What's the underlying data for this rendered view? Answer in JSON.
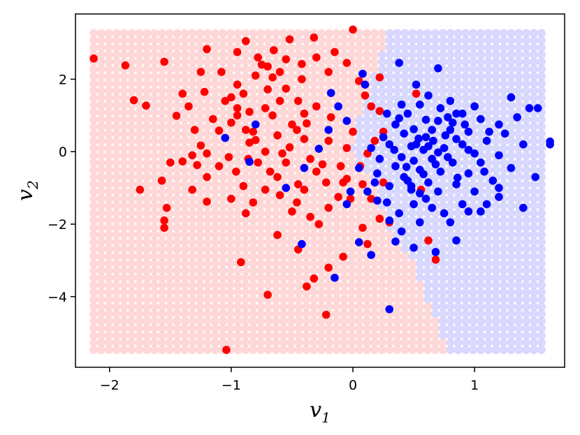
{
  "chart_data": {
    "type": "scatter",
    "title": "",
    "xlabel": {
      "base": "v",
      "sub": "1"
    },
    "ylabel": {
      "base": "v",
      "sub": "2"
    },
    "xlim": [
      -2.28,
      1.74
    ],
    "ylim": [
      -5.95,
      3.8
    ],
    "x_ticks": [
      {
        "value": -2,
        "label": "−2"
      },
      {
        "value": -1,
        "label": "−1"
      },
      {
        "value": 0,
        "label": "0"
      },
      {
        "value": 1,
        "label": "1"
      }
    ],
    "y_ticks": [
      {
        "value": 2,
        "label": "2"
      },
      {
        "value": 0,
        "label": "0"
      },
      {
        "value": -2,
        "label": "−2"
      },
      {
        "value": -4,
        "label": "−4"
      }
    ],
    "grid": false,
    "legend": "none",
    "background_grid": {
      "x_range": [
        -2.13,
        1.55
      ],
      "y_range": [
        -5.47,
        3.27
      ],
      "nx": 60,
      "ny": 45,
      "boundary": [
        [
          3.27,
          0.3
        ],
        [
          2.6,
          0.22
        ],
        [
          1.6,
          0.12
        ],
        [
          0.8,
          0.02
        ],
        [
          0.0,
          -0.02
        ],
        [
          -1.0,
          0.2
        ],
        [
          -2.0,
          0.28
        ],
        [
          -3.0,
          0.48
        ],
        [
          -4.0,
          0.6
        ],
        [
          -5.47,
          0.78
        ]
      ],
      "left_color": "#ffcccc",
      "right_color": "#ccccff",
      "opacity": 0.75
    },
    "series": [
      {
        "name": "",
        "color": "#ff0000",
        "points": [
          [
            -2.13,
            2.57
          ],
          [
            -1.87,
            2.38
          ],
          [
            -1.55,
            2.48
          ],
          [
            -1.8,
            1.42
          ],
          [
            -1.7,
            1.27
          ],
          [
            -1.35,
            1.25
          ],
          [
            -1.45,
            0.99
          ],
          [
            -1.5,
            -0.3
          ],
          [
            -1.57,
            -0.8
          ],
          [
            -1.75,
            -1.05
          ],
          [
            -1.53,
            -1.55
          ],
          [
            -1.55,
            -1.9
          ],
          [
            -1.55,
            -2.1
          ],
          [
            -1.4,
            -0.27
          ],
          [
            -1.32,
            -0.1
          ],
          [
            -1.28,
            -0.37
          ],
          [
            -1.2,
            -0.7
          ],
          [
            -1.32,
            -1.05
          ],
          [
            -1.2,
            -1.38
          ],
          [
            -1.25,
            0.17
          ],
          [
            -1.1,
            0.58
          ],
          [
            -1.0,
            0.8
          ],
          [
            -0.95,
            1.0
          ],
          [
            -1.05,
            1.4
          ],
          [
            -0.9,
            1.6
          ],
          [
            -0.95,
            1.85
          ],
          [
            -0.8,
            2.1
          ],
          [
            -0.75,
            2.4
          ],
          [
            -0.66,
            2.05
          ],
          [
            -0.55,
            1.74
          ],
          [
            -0.6,
            1.4
          ],
          [
            -0.72,
            1.2
          ],
          [
            -0.85,
            1.1
          ],
          [
            -0.88,
            0.6
          ],
          [
            -0.8,
            0.32
          ],
          [
            -0.72,
            0.0
          ],
          [
            -0.62,
            0.45
          ],
          [
            -0.5,
            0.75
          ],
          [
            -0.4,
            1.05
          ],
          [
            -0.52,
            0.12
          ],
          [
            -0.55,
            -0.3
          ],
          [
            -0.62,
            -0.7
          ],
          [
            -0.72,
            -1.05
          ],
          [
            -0.82,
            -1.4
          ],
          [
            -0.9,
            -0.95
          ],
          [
            -0.96,
            -0.55
          ],
          [
            -1.02,
            -0.15
          ],
          [
            -1.1,
            -0.4
          ],
          [
            -1.0,
            -1.3
          ],
          [
            -0.88,
            -1.7
          ],
          [
            -0.95,
            2.75
          ],
          [
            -0.88,
            3.05
          ],
          [
            -0.78,
            2.6
          ],
          [
            -0.65,
            2.8
          ],
          [
            -0.55,
            2.55
          ],
          [
            -0.52,
            3.1
          ],
          [
            -0.6,
            2.2
          ],
          [
            -0.7,
            1.72
          ],
          [
            -0.45,
            1.4
          ],
          [
            -0.38,
            0.78
          ],
          [
            -0.4,
            0.35
          ],
          [
            -0.35,
            -0.2
          ],
          [
            -0.3,
            -0.55
          ],
          [
            -0.22,
            -0.85
          ],
          [
            -0.4,
            -1.05
          ],
          [
            -0.46,
            -1.4
          ],
          [
            -0.35,
            -1.8
          ],
          [
            -0.28,
            -2.0
          ],
          [
            -0.2,
            -1.55
          ],
          [
            -0.12,
            -1.25
          ],
          [
            -0.08,
            -0.85
          ],
          [
            -0.1,
            -0.4
          ],
          [
            -0.05,
            0.1
          ],
          [
            0.0,
            0.55
          ],
          [
            -0.18,
            0.95
          ],
          [
            -0.3,
            1.25
          ],
          [
            -0.42,
            2.0
          ],
          [
            -0.3,
            2.6
          ],
          [
            -0.2,
            2.2
          ],
          [
            -0.32,
            3.15
          ],
          [
            -0.15,
            2.75
          ],
          [
            -0.05,
            2.45
          ],
          [
            0.0,
            3.37
          ],
          [
            0.05,
            1.95
          ],
          [
            0.1,
            1.55
          ],
          [
            0.15,
            1.25
          ],
          [
            0.22,
            1.12
          ],
          [
            0.25,
            0.55
          ],
          [
            0.18,
            0.3
          ],
          [
            0.12,
            -0.05
          ],
          [
            0.06,
            -0.4
          ],
          [
            -0.05,
            -0.75
          ],
          [
            -0.02,
            -1.3
          ],
          [
            0.08,
            -2.1
          ],
          [
            0.12,
            -2.55
          ],
          [
            -0.08,
            -2.9
          ],
          [
            -0.2,
            -3.2
          ],
          [
            -0.32,
            -3.5
          ],
          [
            -0.38,
            -3.72
          ],
          [
            -0.22,
            -4.5
          ],
          [
            -0.45,
            -2.7
          ],
          [
            -0.62,
            -2.3
          ],
          [
            -0.7,
            -3.95
          ],
          [
            -0.92,
            -3.05
          ],
          [
            -1.04,
            -5.47
          ],
          [
            -1.2,
            -0.05
          ],
          [
            -1.3,
            0.6
          ],
          [
            -1.22,
            1.65
          ],
          [
            -1.25,
            2.2
          ],
          [
            -1.4,
            1.6
          ],
          [
            -1.2,
            2.83
          ],
          [
            -1.0,
            1.5
          ],
          [
            -0.85,
            0.25
          ],
          [
            -0.78,
            -0.3
          ],
          [
            -0.68,
            -0.55
          ],
          [
            -0.6,
            -1.2
          ],
          [
            -0.5,
            -1.65
          ],
          [
            -0.45,
            -0.9
          ],
          [
            -0.25,
            -0.35
          ],
          [
            -0.2,
            0.3
          ],
          [
            0.08,
            -0.9
          ],
          [
            0.15,
            -1.3
          ],
          [
            0.22,
            -1.85
          ],
          [
            0.25,
            -0.85
          ],
          [
            0.3,
            -1.95
          ],
          [
            0.62,
            -2.45
          ],
          [
            0.68,
            -2.98
          ],
          [
            0.56,
            -1.05
          ],
          [
            0.52,
            1.6
          ],
          [
            0.22,
            2.05
          ],
          [
            -0.95,
            1.2
          ],
          [
            -0.82,
            0.55
          ],
          [
            -0.66,
            1.0
          ],
          [
            -0.46,
            0.6
          ],
          [
            -0.58,
            -0.05
          ],
          [
            -0.86,
            -0.2
          ],
          [
            -1.15,
            0.9
          ],
          [
            -1.08,
            2.2
          ],
          [
            -0.7,
            2.35
          ],
          [
            -0.42,
            2.42
          ]
        ]
      },
      {
        "name": "",
        "color": "#0000ff",
        "points": [
          [
            0.38,
            2.45
          ],
          [
            0.7,
            2.3
          ],
          [
            0.52,
            1.85
          ],
          [
            0.62,
            1.55
          ],
          [
            0.8,
            1.4
          ],
          [
            0.9,
            1.05
          ],
          [
            1.05,
            0.9
          ],
          [
            1.2,
            0.75
          ],
          [
            1.35,
            0.95
          ],
          [
            1.45,
            1.2
          ],
          [
            1.4,
            0.2
          ],
          [
            1.2,
            -0.1
          ],
          [
            1.05,
            -0.3
          ],
          [
            0.95,
            -0.6
          ],
          [
            0.85,
            -0.9
          ],
          [
            0.7,
            -1.1
          ],
          [
            0.6,
            -1.3
          ],
          [
            0.5,
            -1.45
          ],
          [
            0.38,
            -1.7
          ],
          [
            0.3,
            -1.9
          ],
          [
            0.45,
            -0.8
          ],
          [
            0.55,
            -0.5
          ],
          [
            0.65,
            -0.2
          ],
          [
            0.75,
            0.1
          ],
          [
            0.85,
            0.35
          ],
          [
            0.95,
            0.55
          ],
          [
            0.6,
            0.4
          ],
          [
            0.48,
            0.15
          ],
          [
            0.4,
            -0.15
          ],
          [
            0.35,
            -0.4
          ],
          [
            0.2,
            -0.6
          ],
          [
            0.15,
            0.1
          ],
          [
            0.25,
            0.4
          ],
          [
            0.35,
            0.75
          ],
          [
            0.45,
            1.05
          ],
          [
            0.55,
            1.3
          ],
          [
            0.7,
            0.85
          ],
          [
            0.8,
            0.6
          ],
          [
            0.9,
            0.2
          ],
          [
            1.0,
            -0.05
          ],
          [
            1.1,
            0.3
          ],
          [
            1.25,
            0.5
          ],
          [
            1.3,
            -0.45
          ],
          [
            1.15,
            -0.8
          ],
          [
            1.0,
            -1.1
          ],
          [
            0.9,
            -1.45
          ],
          [
            0.75,
            -1.7
          ],
          [
            0.55,
            -1.95
          ],
          [
            0.4,
            -2.2
          ],
          [
            0.35,
            -2.48
          ],
          [
            0.5,
            -2.65
          ],
          [
            0.68,
            -2.77
          ],
          [
            0.85,
            -2.45
          ],
          [
            1.05,
            -1.65
          ],
          [
            1.2,
            -1.25
          ],
          [
            1.4,
            -1.55
          ],
          [
            1.5,
            -0.7
          ],
          [
            1.62,
            0.28
          ],
          [
            1.62,
            0.2
          ],
          [
            1.52,
            1.2
          ],
          [
            1.3,
            1.5
          ],
          [
            0.92,
            0.75
          ],
          [
            0.78,
            0.95
          ],
          [
            0.65,
            0.6
          ],
          [
            0.58,
            0.05
          ],
          [
            0.5,
            -0.25
          ],
          [
            0.42,
            0.5
          ],
          [
            0.3,
            0.2
          ],
          [
            0.22,
            -0.2
          ],
          [
            0.18,
            -0.85
          ],
          [
            0.12,
            -1.1
          ],
          [
            0.05,
            -0.45
          ],
          [
            -0.02,
            -1.1
          ],
          [
            -0.05,
            -1.45
          ],
          [
            0.08,
            2.15
          ],
          [
            0.1,
            1.85
          ],
          [
            -0.18,
            1.62
          ],
          [
            -0.12,
            1.25
          ],
          [
            -0.05,
            0.85
          ],
          [
            -0.2,
            0.6
          ],
          [
            -0.28,
            0.08
          ],
          [
            -0.4,
            -0.45
          ],
          [
            -0.55,
            -1.0
          ],
          [
            -0.8,
            0.75
          ],
          [
            -0.85,
            -0.28
          ],
          [
            -1.05,
            0.38
          ],
          [
            -0.42,
            -2.55
          ],
          [
            -0.15,
            -3.48
          ],
          [
            0.3,
            -4.35
          ],
          [
            0.15,
            -2.85
          ],
          [
            0.05,
            -2.5
          ],
          [
            0.28,
            -1.4
          ],
          [
            0.48,
            -1.05
          ],
          [
            0.62,
            -0.85
          ],
          [
            0.72,
            -0.55
          ],
          [
            0.82,
            -0.3
          ],
          [
            0.95,
            0.05
          ],
          [
            1.08,
            -0.55
          ],
          [
            1.2,
            -1.0
          ],
          [
            1.1,
            -1.45
          ],
          [
            0.95,
            -1.65
          ],
          [
            0.8,
            -1.95
          ],
          [
            0.65,
            -1.55
          ],
          [
            0.55,
            -1.15
          ],
          [
            0.42,
            -0.7
          ],
          [
            0.3,
            -0.95
          ],
          [
            0.2,
            -1.35
          ],
          [
            0.38,
            0.92
          ],
          [
            0.5,
            0.62
          ],
          [
            0.6,
            0.88
          ],
          [
            0.72,
            1.2
          ],
          [
            0.85,
            1.05
          ],
          [
            1.0,
            1.25
          ],
          [
            1.12,
            0.55
          ],
          [
            0.66,
            0.3
          ],
          [
            0.54,
            0.36
          ],
          [
            0.44,
            -0.42
          ],
          [
            0.34,
            0.05
          ],
          [
            0.78,
            -0.15
          ],
          [
            0.86,
            -0.72
          ],
          [
            0.68,
            -0.35
          ],
          [
            0.58,
            -0.62
          ],
          [
            0.48,
            -0.95
          ],
          [
            0.4,
            1.3
          ],
          [
            0.28,
            1.05
          ],
          [
            0.52,
            0.2
          ],
          [
            0.62,
            0.15
          ],
          [
            0.7,
            -0.02
          ],
          [
            0.76,
            0.45
          ],
          [
            0.82,
            0.8
          ]
        ]
      }
    ]
  }
}
